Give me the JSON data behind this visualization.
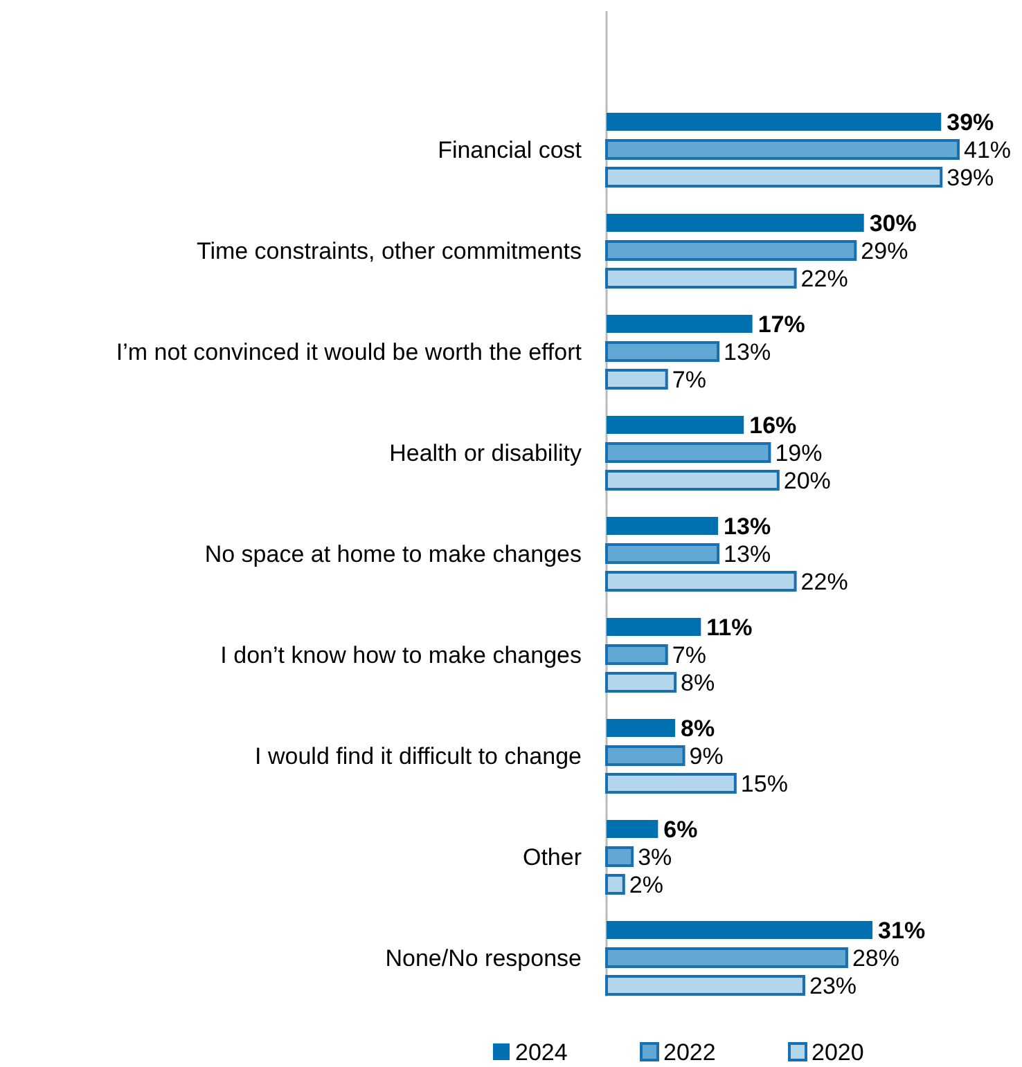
{
  "chart_data": {
    "type": "bar",
    "orientation": "horizontal",
    "categories": [
      "Financial cost",
      "Time constraints, other commitments",
      "I’m not convinced it would be worth the effort",
      "Health or disability",
      "No space at home to make changes",
      "I don’t know how to make changes",
      "I would find it difficult to change",
      "Other",
      "None/No response"
    ],
    "series": [
      {
        "name": "2024",
        "color": "#0070b0",
        "values": [
          39,
          30,
          17,
          16,
          13,
          11,
          8,
          6,
          31
        ],
        "value_labels": [
          "39%",
          "30%",
          "17%",
          "16%",
          "13%",
          "11%",
          "8%",
          "6%",
          "31%"
        ]
      },
      {
        "name": "2022",
        "color": "#62a8d4",
        "values": [
          41,
          29,
          13,
          19,
          13,
          7,
          9,
          3,
          28
        ],
        "value_labels": [
          "41%",
          "29%",
          "13%",
          "19%",
          "13%",
          "7%",
          "9%",
          "3%",
          "28%"
        ]
      },
      {
        "name": "2020",
        "color": "#b4d6ec",
        "values": [
          39,
          22,
          7,
          20,
          22,
          8,
          15,
          2,
          23
        ],
        "value_labels": [
          "39%",
          "22%",
          "7%",
          "20%",
          "22%",
          "8%",
          "15%",
          "2%",
          "23%"
        ]
      }
    ],
    "legend": "bottom"
  }
}
